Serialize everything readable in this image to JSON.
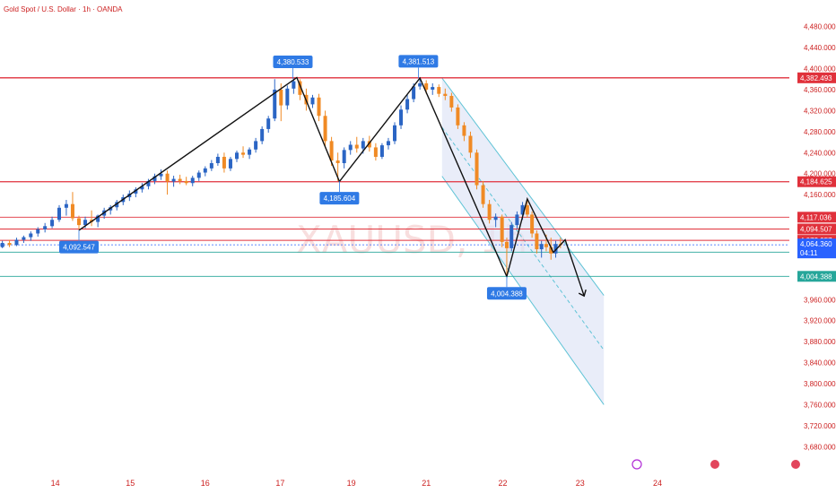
{
  "chart_data": {
    "type": "candlestick",
    "title": "Gold Spot / U.S. Dollar · 1h · OANDA",
    "watermark": "XAUUSD, 1h",
    "y_range": [
      3660,
      4500
    ],
    "y_ticks": [
      "4,480.000",
      "4,440.000",
      "4,400.000",
      "4,360.000",
      "4,320.000",
      "4,280.000",
      "4,240.000",
      "4,200.000",
      "4,160.000",
      "3,960.000",
      "3,920.000",
      "3,880.000",
      "3,840.000",
      "3,800.000",
      "3,760.000",
      "3,720.000",
      "3,680.000"
    ],
    "y_tick_values": [
      4480,
      4440,
      4400,
      4360,
      4320,
      4280,
      4240,
      4200,
      4160,
      3960,
      3920,
      3880,
      3840,
      3800,
      3760,
      3720,
      3680
    ],
    "x_ticks": [
      {
        "label": "14",
        "t": 0.07
      },
      {
        "label": "15",
        "t": 0.165
      },
      {
        "label": "16",
        "t": 0.26
      },
      {
        "label": "17",
        "t": 0.355
      },
      {
        "label": "19",
        "t": 0.445
      },
      {
        "label": "21",
        "t": 0.54
      },
      {
        "label": "22",
        "t": 0.637
      },
      {
        "label": "23",
        "t": 0.735
      },
      {
        "label": "24",
        "t": 0.833
      }
    ],
    "horizontal_lines": [
      {
        "value": 4382.493,
        "label": "4,382.493",
        "color": "#e0313b",
        "badge": "#e0313b"
      },
      {
        "value": 4184.625,
        "label": "4,184.625",
        "color": "#e0313b",
        "badge": "#e0313b"
      },
      {
        "value": 4117.036,
        "label": "4,117.036",
        "color": "#e0313b",
        "badge": "#e0313b"
      },
      {
        "value": 4094.507,
        "label": "4,094.507",
        "color": "#e0313b",
        "badge": "#e0313b"
      },
      {
        "value": 4072.957,
        "label": "4,072.957",
        "color": "#e0313b",
        "badge": "#e0313b"
      },
      {
        "value": 4050.427,
        "label": "4,050.427",
        "color": "#26a69a",
        "badge": "#26a69a"
      },
      {
        "value": 4004.388,
        "label": "4,004.388",
        "color": "#26a69a",
        "badge": "#26a69a"
      }
    ],
    "current_price": {
      "value": 4064.36,
      "label": "4,064.360",
      "countdown": "04:11",
      "color": "#2962ff"
    },
    "pivots": [
      {
        "label": "4,092.547",
        "t": 0.1,
        "value": 4092.547,
        "pos": "below"
      },
      {
        "label": "4,380.533",
        "t": 0.371,
        "value": 4380.533,
        "pos": "above"
      },
      {
        "label": "4,185.604",
        "t": 0.43,
        "value": 4185.604,
        "pos": "below"
      },
      {
        "label": "4,381.513",
        "t": 0.53,
        "value": 4381.513,
        "pos": "above"
      },
      {
        "label": "4,004.388",
        "t": 0.642,
        "value": 4004.388,
        "pos": "below"
      }
    ],
    "zigzag": [
      {
        "t": 0.1,
        "v": 4092
      },
      {
        "t": 0.376,
        "v": 4383
      },
      {
        "t": 0.43,
        "v": 4185
      },
      {
        "t": 0.532,
        "v": 4382
      },
      {
        "t": 0.642,
        "v": 4004
      },
      {
        "t": 0.668,
        "v": 4152
      },
      {
        "t": 0.701,
        "v": 4050
      },
      {
        "t": 0.716,
        "v": 4074
      },
      {
        "t": 0.74,
        "v": 3967
      }
    ],
    "channel": {
      "upper": [
        {
          "t": 0.56,
          "v": 4382
        },
        {
          "t": 0.765,
          "v": 3968
        }
      ],
      "lower": [
        {
          "t": 0.56,
          "v": 4195
        },
        {
          "t": 0.765,
          "v": 3760
        }
      ],
      "mid": [
        {
          "t": 0.56,
          "v": 4288
        },
        {
          "t": 0.765,
          "v": 3864
        }
      ]
    },
    "candles": [
      {
        "t": 0.003,
        "o": 4060,
        "h": 4072,
        "l": 4058,
        "c": 4068
      },
      {
        "t": 0.012,
        "o": 4068,
        "h": 4074,
        "l": 4060,
        "c": 4064
      },
      {
        "t": 0.021,
        "o": 4064,
        "h": 4078,
        "l": 4062,
        "c": 4074
      },
      {
        "t": 0.03,
        "o": 4074,
        "h": 4082,
        "l": 4068,
        "c": 4079
      },
      {
        "t": 0.039,
        "o": 4079,
        "h": 4090,
        "l": 4072,
        "c": 4086
      },
      {
        "t": 0.048,
        "o": 4086,
        "h": 4098,
        "l": 4080,
        "c": 4094
      },
      {
        "t": 0.057,
        "o": 4094,
        "h": 4106,
        "l": 4088,
        "c": 4100
      },
      {
        "t": 0.066,
        "o": 4100,
        "h": 4118,
        "l": 4096,
        "c": 4112
      },
      {
        "t": 0.075,
        "o": 4112,
        "h": 4140,
        "l": 4108,
        "c": 4135
      },
      {
        "t": 0.084,
        "o": 4135,
        "h": 4150,
        "l": 4120,
        "c": 4142
      },
      {
        "t": 0.092,
        "o": 4142,
        "h": 4165,
        "l": 4110,
        "c": 4115
      },
      {
        "t": 0.1,
        "o": 4115,
        "h": 4120,
        "l": 4092,
        "c": 4102
      },
      {
        "t": 0.108,
        "o": 4102,
        "h": 4118,
        "l": 4096,
        "c": 4112
      },
      {
        "t": 0.116,
        "o": 4112,
        "h": 4130,
        "l": 4100,
        "c": 4108
      },
      {
        "t": 0.124,
        "o": 4108,
        "h": 4122,
        "l": 4098,
        "c": 4120
      },
      {
        "t": 0.132,
        "o": 4120,
        "h": 4135,
        "l": 4114,
        "c": 4130
      },
      {
        "t": 0.14,
        "o": 4130,
        "h": 4140,
        "l": 4122,
        "c": 4136
      },
      {
        "t": 0.148,
        "o": 4136,
        "h": 4150,
        "l": 4130,
        "c": 4146
      },
      {
        "t": 0.156,
        "o": 4146,
        "h": 4160,
        "l": 4140,
        "c": 4155
      },
      {
        "t": 0.164,
        "o": 4155,
        "h": 4168,
        "l": 4148,
        "c": 4162
      },
      {
        "t": 0.172,
        "o": 4162,
        "h": 4174,
        "l": 4155,
        "c": 4170
      },
      {
        "t": 0.18,
        "o": 4170,
        "h": 4182,
        "l": 4164,
        "c": 4176
      },
      {
        "t": 0.188,
        "o": 4176,
        "h": 4190,
        "l": 4170,
        "c": 4186
      },
      {
        "t": 0.196,
        "o": 4186,
        "h": 4200,
        "l": 4180,
        "c": 4195
      },
      {
        "t": 0.204,
        "o": 4195,
        "h": 4208,
        "l": 4188,
        "c": 4200
      },
      {
        "t": 0.212,
        "o": 4200,
        "h": 4206,
        "l": 4160,
        "c": 4185
      },
      {
        "t": 0.22,
        "o": 4185,
        "h": 4196,
        "l": 4175,
        "c": 4190
      },
      {
        "t": 0.228,
        "o": 4190,
        "h": 4198,
        "l": 4180,
        "c": 4186
      },
      {
        "t": 0.236,
        "o": 4186,
        "h": 4194,
        "l": 4178,
        "c": 4182
      },
      {
        "t": 0.244,
        "o": 4182,
        "h": 4196,
        "l": 4176,
        "c": 4192
      },
      {
        "t": 0.252,
        "o": 4192,
        "h": 4206,
        "l": 4186,
        "c": 4202
      },
      {
        "t": 0.26,
        "o": 4202,
        "h": 4214,
        "l": 4195,
        "c": 4210
      },
      {
        "t": 0.268,
        "o": 4210,
        "h": 4226,
        "l": 4205,
        "c": 4220
      },
      {
        "t": 0.276,
        "o": 4220,
        "h": 4238,
        "l": 4215,
        "c": 4232
      },
      {
        "t": 0.284,
        "o": 4232,
        "h": 4240,
        "l": 4202,
        "c": 4210
      },
      {
        "t": 0.292,
        "o": 4210,
        "h": 4232,
        "l": 4205,
        "c": 4228
      },
      {
        "t": 0.3,
        "o": 4228,
        "h": 4244,
        "l": 4222,
        "c": 4240
      },
      {
        "t": 0.308,
        "o": 4240,
        "h": 4252,
        "l": 4230,
        "c": 4236
      },
      {
        "t": 0.316,
        "o": 4236,
        "h": 4250,
        "l": 4228,
        "c": 4246
      },
      {
        "t": 0.324,
        "o": 4246,
        "h": 4268,
        "l": 4240,
        "c": 4262
      },
      {
        "t": 0.332,
        "o": 4262,
        "h": 4290,
        "l": 4256,
        "c": 4285
      },
      {
        "t": 0.34,
        "o": 4285,
        "h": 4310,
        "l": 4278,
        "c": 4305
      },
      {
        "t": 0.348,
        "o": 4305,
        "h": 4380,
        "l": 4300,
        "c": 4360
      },
      {
        "t": 0.356,
        "o": 4360,
        "h": 4372,
        "l": 4300,
        "c": 4330
      },
      {
        "t": 0.364,
        "o": 4330,
        "h": 4368,
        "l": 4322,
        "c": 4362
      },
      {
        "t": 0.372,
        "o": 4362,
        "h": 4381,
        "l": 4352,
        "c": 4376
      },
      {
        "t": 0.38,
        "o": 4376,
        "h": 4380,
        "l": 4340,
        "c": 4350
      },
      {
        "t": 0.388,
        "o": 4350,
        "h": 4362,
        "l": 4320,
        "c": 4332
      },
      {
        "t": 0.396,
        "o": 4332,
        "h": 4350,
        "l": 4325,
        "c": 4345
      },
      {
        "t": 0.404,
        "o": 4345,
        "h": 4352,
        "l": 4300,
        "c": 4310
      },
      {
        "t": 0.412,
        "o": 4310,
        "h": 4320,
        "l": 4250,
        "c": 4262
      },
      {
        "t": 0.42,
        "o": 4262,
        "h": 4270,
        "l": 4215,
        "c": 4225
      },
      {
        "t": 0.428,
        "o": 4225,
        "h": 4240,
        "l": 4186,
        "c": 4220
      },
      {
        "t": 0.436,
        "o": 4220,
        "h": 4250,
        "l": 4210,
        "c": 4245
      },
      {
        "t": 0.444,
        "o": 4245,
        "h": 4262,
        "l": 4236,
        "c": 4255
      },
      {
        "t": 0.452,
        "o": 4255,
        "h": 4270,
        "l": 4240,
        "c": 4248
      },
      {
        "t": 0.46,
        "o": 4248,
        "h": 4268,
        "l": 4238,
        "c": 4262
      },
      {
        "t": 0.468,
        "o": 4262,
        "h": 4272,
        "l": 4242,
        "c": 4250
      },
      {
        "t": 0.476,
        "o": 4250,
        "h": 4258,
        "l": 4225,
        "c": 4232
      },
      {
        "t": 0.484,
        "o": 4232,
        "h": 4258,
        "l": 4228,
        "c": 4254
      },
      {
        "t": 0.492,
        "o": 4254,
        "h": 4268,
        "l": 4246,
        "c": 4262
      },
      {
        "t": 0.5,
        "o": 4262,
        "h": 4298,
        "l": 4256,
        "c": 4292
      },
      {
        "t": 0.508,
        "o": 4292,
        "h": 4330,
        "l": 4285,
        "c": 4322
      },
      {
        "t": 0.516,
        "o": 4322,
        "h": 4350,
        "l": 4315,
        "c": 4342
      },
      {
        "t": 0.524,
        "o": 4342,
        "h": 4372,
        "l": 4336,
        "c": 4366
      },
      {
        "t": 0.532,
        "o": 4366,
        "h": 4382,
        "l": 4360,
        "c": 4372
      },
      {
        "t": 0.54,
        "o": 4372,
        "h": 4378,
        "l": 4352,
        "c": 4360
      },
      {
        "t": 0.548,
        "o": 4360,
        "h": 4372,
        "l": 4350,
        "c": 4365
      },
      {
        "t": 0.556,
        "o": 4365,
        "h": 4370,
        "l": 4346,
        "c": 4352
      },
      {
        "t": 0.564,
        "o": 4352,
        "h": 4362,
        "l": 4340,
        "c": 4348
      },
      {
        "t": 0.572,
        "o": 4348,
        "h": 4354,
        "l": 4318,
        "c": 4326
      },
      {
        "t": 0.58,
        "o": 4326,
        "h": 4332,
        "l": 4285,
        "c": 4292
      },
      {
        "t": 0.588,
        "o": 4292,
        "h": 4298,
        "l": 4262,
        "c": 4272
      },
      {
        "t": 0.596,
        "o": 4272,
        "h": 4280,
        "l": 4230,
        "c": 4240
      },
      {
        "t": 0.604,
        "o": 4240,
        "h": 4246,
        "l": 4170,
        "c": 4178
      },
      {
        "t": 0.612,
        "o": 4178,
        "h": 4186,
        "l": 4135,
        "c": 4142
      },
      {
        "t": 0.62,
        "o": 4142,
        "h": 4150,
        "l": 4105,
        "c": 4112
      },
      {
        "t": 0.628,
        "o": 4112,
        "h": 4124,
        "l": 4098,
        "c": 4118
      },
      {
        "t": 0.636,
        "o": 4118,
        "h": 4122,
        "l": 4060,
        "c": 4070
      },
      {
        "t": 0.642,
        "o": 4070,
        "h": 4078,
        "l": 4004,
        "c": 4058
      },
      {
        "t": 0.648,
        "o": 4058,
        "h": 4108,
        "l": 4052,
        "c": 4102
      },
      {
        "t": 0.655,
        "o": 4102,
        "h": 4128,
        "l": 4095,
        "c": 4122
      },
      {
        "t": 0.662,
        "o": 4122,
        "h": 4146,
        "l": 4112,
        "c": 4140
      },
      {
        "t": 0.668,
        "o": 4140,
        "h": 4152,
        "l": 4116,
        "c": 4122
      },
      {
        "t": 0.674,
        "o": 4122,
        "h": 4128,
        "l": 4078,
        "c": 4086
      },
      {
        "t": 0.68,
        "o": 4086,
        "h": 4092,
        "l": 4048,
        "c": 4056
      },
      {
        "t": 0.686,
        "o": 4056,
        "h": 4072,
        "l": 4040,
        "c": 4066
      },
      {
        "t": 0.692,
        "o": 4066,
        "h": 4084,
        "l": 4052,
        "c": 4060
      },
      {
        "t": 0.698,
        "o": 4060,
        "h": 4078,
        "l": 4036,
        "c": 4048
      },
      {
        "t": 0.704,
        "o": 4048,
        "h": 4072,
        "l": 4040,
        "c": 4066
      },
      {
        "t": 0.71,
        "o": 4066,
        "h": 4078,
        "l": 4058,
        "c": 4064
      }
    ]
  }
}
